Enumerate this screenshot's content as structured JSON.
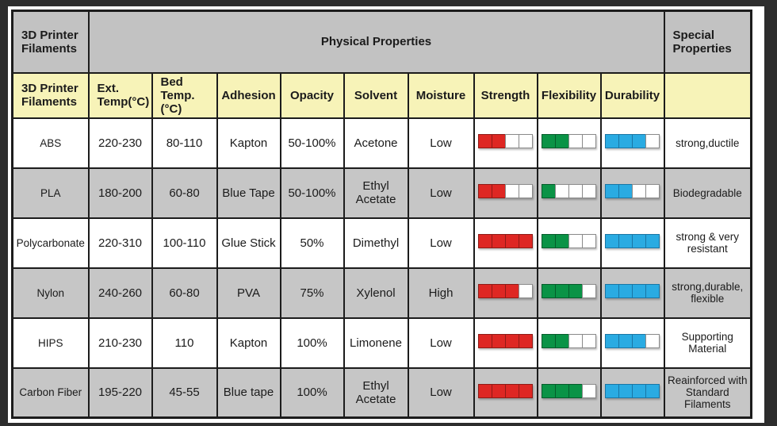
{
  "chart_data": {
    "type": "table",
    "title": "3D Printer Filaments - Physical Properties",
    "group_headers": {
      "filaments": "3D Printer\nFilaments",
      "physical": "Physical Properties",
      "special": "Special\nProperties"
    },
    "columns": [
      "3D Printer Filaments",
      "Ext. Temp(°C)",
      "Bed Temp.(°C)",
      "Adhesion",
      "Opacity",
      "Solvent",
      "Moisture",
      "Strength",
      "Flexibility",
      "Durability",
      "Special Properties"
    ],
    "rating_scale_max": 4,
    "rows": [
      {
        "name": "ABS",
        "ext_temp": "220-230",
        "bed_temp": "80-110",
        "adhesion": "Kapton",
        "opacity": "50-100%",
        "solvent": "Acetone",
        "moisture": "Low",
        "strength": 2,
        "flexibility": 2,
        "durability": 3,
        "special": "strong,ductile"
      },
      {
        "name": "PLA",
        "ext_temp": "180-200",
        "bed_temp": "60-80",
        "adhesion": "Blue Tape",
        "opacity": "50-100%",
        "solvent": "Ethyl Acetate",
        "moisture": "Low",
        "strength": 2,
        "flexibility": 1,
        "durability": 2,
        "special": "Biodegradable"
      },
      {
        "name": "Polycarbonate",
        "ext_temp": "220-310",
        "bed_temp": "100-110",
        "adhesion": "Glue Stick",
        "opacity": "50%",
        "solvent": "Dimethyl",
        "moisture": "Low",
        "strength": 4,
        "flexibility": 2,
        "durability": 4,
        "special": "strong & very resistant"
      },
      {
        "name": "Nylon",
        "ext_temp": "240-260",
        "bed_temp": "60-80",
        "adhesion": "PVA",
        "opacity": "75%",
        "solvent": "Xylenol",
        "moisture": "High",
        "strength": 3,
        "flexibility": 3,
        "durability": 4,
        "special": "strong,durable, flexible"
      },
      {
        "name": "HIPS",
        "ext_temp": "210-230",
        "bed_temp": "110",
        "adhesion": "Kapton",
        "opacity": "100%",
        "solvent": "Limonene",
        "moisture": "Low",
        "strength": 4,
        "flexibility": 2,
        "durability": 3,
        "special": "Supporting Material"
      },
      {
        "name": "Carbon Fiber",
        "ext_temp": "195-220",
        "bed_temp": "45-55",
        "adhesion": "Blue tape",
        "opacity": "100%",
        "solvent": "Ethyl Acetate",
        "moisture": "Low",
        "strength": 4,
        "flexibility": 3,
        "durability": 4,
        "special": "Reainforced with Standard Filaments"
      }
    ]
  },
  "header1": {
    "filaments": "3D Printer\nFilaments",
    "physical": "Physical Properties",
    "special": "Special\nProperties"
  },
  "header2": {
    "filaments": "3D Printer\nFilaments",
    "ext_temp": "Ext.\nTemp(°C)",
    "bed_temp": "Bed\nTemp.(°C)",
    "adhesion": "Adhesion",
    "opacity": "Opacity",
    "solvent": "Solvent",
    "moisture": "Moisture",
    "strength": "Strength",
    "flexibility": "Flexibility",
    "durability": "Durability",
    "special": ""
  },
  "rows": [
    {
      "name": "ABS",
      "ext_temp": "220-230",
      "bed_temp": "80-110",
      "adhesion": "Kapton",
      "opacity": "50-100%",
      "solvent": "Acetone",
      "moisture": "Low",
      "strength": 2,
      "flexibility": 2,
      "durability": 3,
      "special": "strong,ductile"
    },
    {
      "name": "PLA",
      "ext_temp": "180-200",
      "bed_temp": "60-80",
      "adhesion": "Blue Tape",
      "opacity": "50-100%",
      "solvent": "Ethyl Acetate",
      "moisture": "Low",
      "strength": 2,
      "flexibility": 1,
      "durability": 2,
      "special": "Biodegradable"
    },
    {
      "name": "Polycarbonate",
      "ext_temp": "220-310",
      "bed_temp": "100-110",
      "adhesion": "Glue Stick",
      "opacity": "50%",
      "solvent": "Dimethyl",
      "moisture": "Low",
      "strength": 4,
      "flexibility": 2,
      "durability": 4,
      "special": "strong & very resistant"
    },
    {
      "name": "Nylon",
      "ext_temp": "240-260",
      "bed_temp": "60-80",
      "adhesion": "PVA",
      "opacity": "75%",
      "solvent": "Xylenol",
      "moisture": "High",
      "strength": 3,
      "flexibility": 3,
      "durability": 4,
      "special": "strong,durable, flexible"
    },
    {
      "name": "HIPS",
      "ext_temp": "210-230",
      "bed_temp": "110",
      "adhesion": "Kapton",
      "opacity": "100%",
      "solvent": "Limonene",
      "moisture": "Low",
      "strength": 4,
      "flexibility": 2,
      "durability": 3,
      "special": "Supporting Material"
    },
    {
      "name": "Carbon Fiber",
      "ext_temp": "195-220",
      "bed_temp": "45-55",
      "adhesion": "Blue tape",
      "opacity": "100%",
      "solvent": "Ethyl Acetate",
      "moisture": "Low",
      "strength": 4,
      "flexibility": 3,
      "durability": 4,
      "special": "Reainforced with Standard Filaments"
    }
  ],
  "rating": {
    "max": 4,
    "colors": {
      "strength": {
        "fill": "#de2723",
        "border": "#8f1b16"
      },
      "flexibility": {
        "fill": "#0a9346",
        "border": "#055c2b"
      },
      "durability": {
        "fill": "#2aabe2",
        "border": "#1a76a5"
      }
    },
    "empty": {
      "fill": "#ffffff",
      "border": "#8a8a8a"
    }
  },
  "colors": {
    "frame": "#2d2d2d",
    "mat": "#ffffff",
    "header_gray": "#c2c2c2",
    "header_yellow": "#f7f3b8",
    "row_gray": "#c6c6c6",
    "row_white": "#ffffff",
    "border": "#1c1c1c"
  }
}
